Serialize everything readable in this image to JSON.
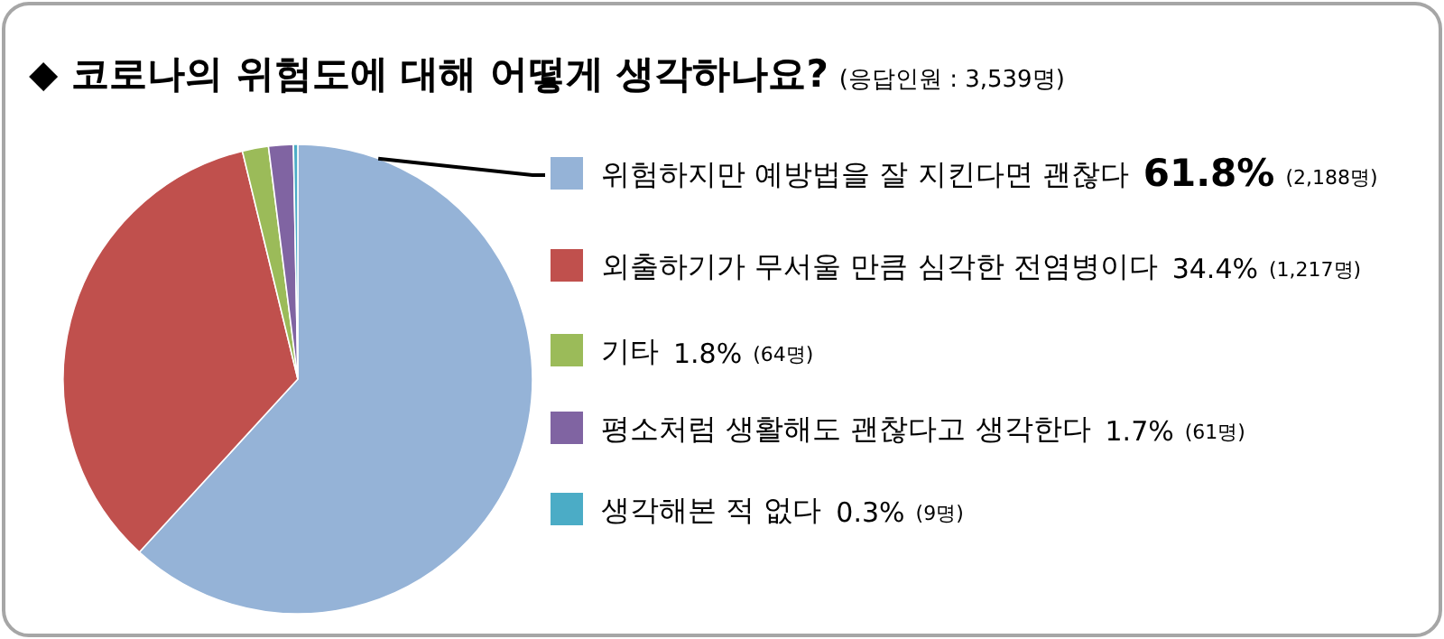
{
  "chart_data": {
    "type": "pie",
    "title": "◆ 코로나의 위험도에 대해 어떻게 생각하나요?",
    "subtitle": "(응답인원 : 3,539명)",
    "categories": [
      "위험하지만 예방법을 잘 지킨다면 괜찮다",
      "외출하기가 무서울 만큼 심각한 전염병이다",
      "기타",
      "평소처럼 생활해도 괜찮다고 생각한다",
      "생각해본 적 없다"
    ],
    "values": [
      61.8,
      34.4,
      1.8,
      1.7,
      0.3
    ],
    "colors": [
      "#95b3d7",
      "#c0504d",
      "#9bbb59",
      "#8064a2",
      "#4bacc6"
    ],
    "value_labels": [
      "61.8%",
      "34.4%",
      "1.8%",
      "1.7%",
      "0.3%"
    ],
    "annotations": [
      "(2,188명)",
      "(1,217명)",
      "(64명)",
      "(61명)",
      "(9명)"
    ],
    "legend": "right"
  }
}
